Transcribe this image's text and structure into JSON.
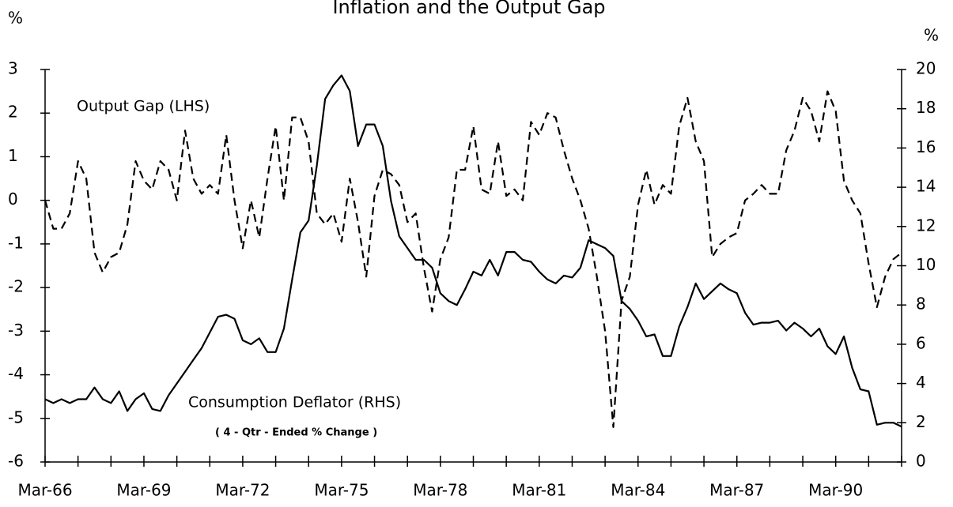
{
  "chart_data": {
    "type": "line",
    "title": "Inflation and the Output Gap",
    "y_label": "%",
    "y2_label": "%",
    "annotations": [
      "( 4 - Qtr - Ended % Change )"
    ],
    "categories": [
      "Mar-66",
      null,
      null,
      null,
      null,
      null,
      null,
      null,
      null,
      null,
      null,
      null,
      "Mar-69",
      null,
      null,
      null,
      null,
      null,
      null,
      null,
      null,
      null,
      null,
      null,
      "Mar-72",
      null,
      null,
      null,
      null,
      null,
      null,
      null,
      null,
      null,
      null,
      null,
      "Mar-75",
      null,
      null,
      null,
      null,
      null,
      null,
      null,
      null,
      null,
      null,
      null,
      "Mar-78",
      null,
      null,
      null,
      null,
      null,
      null,
      null,
      null,
      null,
      null,
      null,
      "Mar-81",
      null,
      null,
      null,
      null,
      null,
      null,
      null,
      null,
      null,
      null,
      null,
      "Mar-84",
      null,
      null,
      null,
      null,
      null,
      null,
      null,
      null,
      null,
      null,
      null,
      "Mar-87",
      null,
      null,
      null,
      null,
      null,
      null,
      null,
      null,
      null,
      null,
      null,
      "Mar-90",
      null,
      null,
      null,
      null,
      null,
      null,
      null,
      null
    ],
    "series": [
      {
        "name": "Output Gap (LHS)",
        "color": "#000000",
        "style": "dashed",
        "axis": "y",
        "values": [
          0,
          -0.65,
          -0.65,
          -0.3,
          0.9,
          0.5,
          -1.2,
          -1.65,
          -1.3,
          -1.2,
          -0.55,
          0.9,
          0.45,
          0.25,
          0.9,
          0.7,
          0,
          1.6,
          0.5,
          0.15,
          0.35,
          0.15,
          1.5,
          0,
          -1.1,
          0,
          -0.85,
          0.5,
          1.7,
          0,
          1.9,
          1.9,
          1.35,
          -0.3,
          -0.55,
          -0.3,
          -0.95,
          0.5,
          -0.5,
          -1.75,
          0.1,
          0.7,
          0.6,
          0.35,
          -0.5,
          -0.3,
          -1.55,
          -2.55,
          -1.35,
          -0.85,
          0.7,
          0.7,
          1.7,
          0.25,
          0.15,
          1.35,
          0.1,
          0.25,
          0,
          1.8,
          1.5,
          2.0,
          1.9,
          1.15,
          0.5,
          0,
          -0.65,
          -1.75,
          -3.0,
          -5.2,
          -2.3,
          -1.75,
          -0.1,
          0.7,
          -0.1,
          0.35,
          0.15,
          1.7,
          2.35,
          1.35,
          0.9,
          -1.3,
          -1.0,
          -0.85,
          -0.75,
          0,
          0.15,
          0.35,
          0.15,
          0.15,
          1.15,
          1.6,
          2.35,
          2.05,
          1.35,
          2.5,
          2.05,
          0.45,
          0,
          -0.3,
          -1.45,
          -2.45,
          -1.75,
          -1.35,
          -1.2
        ]
      },
      {
        "name": "Consumption Deflator (RHS)",
        "color": "#000000",
        "style": "solid",
        "axis": "y2",
        "values": [
          3.2,
          3.0,
          3.2,
          3.0,
          3.2,
          3.2,
          3.8,
          3.2,
          3.0,
          3.6,
          2.6,
          3.2,
          3.5,
          2.7,
          2.6,
          3.4,
          4.0,
          4.6,
          5.2,
          5.8,
          6.6,
          7.4,
          7.5,
          7.3,
          6.2,
          6.0,
          6.3,
          5.6,
          5.6,
          6.8,
          9.3,
          11.7,
          12.3,
          15.1,
          18.5,
          19.2,
          19.7,
          18.9,
          16.1,
          17.2,
          17.2,
          16.1,
          13.3,
          11.5,
          10.9,
          10.3,
          10.3,
          9.9,
          8.6,
          8.2,
          8.0,
          8.8,
          9.7,
          9.5,
          10.3,
          9.5,
          10.7,
          10.7,
          10.3,
          10.2,
          9.7,
          9.3,
          9.1,
          9.5,
          9.4,
          9.9,
          11.3,
          11.1,
          10.9,
          10.5,
          8.2,
          7.8,
          7.2,
          6.4,
          6.5,
          5.4,
          5.4,
          6.9,
          7.9,
          9.1,
          8.3,
          8.7,
          9.1,
          8.8,
          8.6,
          7.6,
          7.0,
          7.1,
          7.1,
          7.2,
          6.7,
          7.1,
          6.8,
          6.4,
          6.8,
          5.9,
          5.5,
          6.4,
          4.8,
          3.7,
          3.6,
          1.9,
          2.0,
          2.0,
          1.8
        ]
      }
    ],
    "ylim": [
      -6,
      3
    ],
    "yticks": [
      -6,
      -5,
      -4,
      -3,
      -2,
      -1,
      0,
      1,
      2,
      3
    ],
    "y2lim": [
      0,
      20
    ],
    "y2ticks": [
      0,
      2,
      4,
      6,
      8,
      10,
      12,
      14,
      16,
      18,
      20
    ],
    "grid": false
  }
}
